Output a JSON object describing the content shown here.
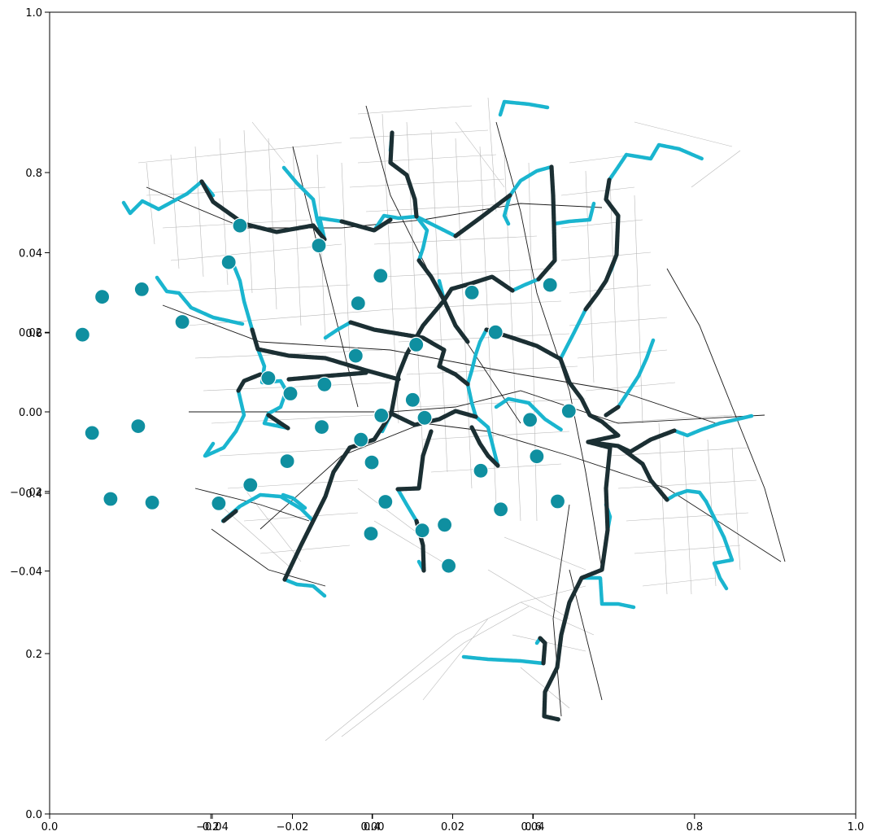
{
  "axes": {
    "outer_x_ticks": [
      "0.0",
      "0.2",
      "0.4",
      "0.6",
      "0.8",
      "1.0"
    ],
    "outer_y_ticks": [
      "0.0",
      "0.2",
      "0.4",
      "0.6",
      "0.8",
      "1.0"
    ],
    "inner_x_ticks": [
      "−0.04",
      "−0.02",
      "0.00",
      "0.02",
      "0.04"
    ],
    "inner_y_ticks": [
      "−0.04",
      "−0.02",
      "0.00",
      "0.02",
      "0.04"
    ]
  },
  "colors": {
    "trunk": "#1b2f33",
    "branch": "#1ab5cf",
    "node": "#0f8fa0",
    "road_major": "#111111",
    "road_minor": "#b3b3b3"
  },
  "map_data": {
    "coordinate_units": "degrees offset from center",
    "nodes": [
      [
        -0.0435,
        0.0264
      ],
      [
        -0.0342,
        0.0169
      ],
      [
        -0.0175,
        0.0289
      ],
      [
        -0.0224,
        0.0194
      ],
      [
        -0.0076,
        0.0308
      ],
      [
        0.0025,
        0.0226
      ],
      [
        0.0141,
        0.0376
      ],
      [
        0.0169,
        0.0468
      ],
      [
        0.0366,
        0.0418
      ],
      [
        0.0464,
        0.0273
      ],
      [
        0.052,
        0.0342
      ],
      [
        0.0748,
        0.03
      ],
      [
        0.0807,
        0.02
      ],
      [
        0.0943,
        0.0319
      ],
      [
        0.0609,
        0.0169
      ],
      [
        0.0458,
        0.0141
      ],
      [
        0.038,
        0.0069
      ],
      [
        0.024,
        0.0085
      ],
      [
        0.0295,
        0.0046
      ],
      [
        0.06,
        0.003
      ],
      [
        0.063,
        -0.0015
      ],
      [
        0.099,
        0.0002
      ],
      [
        0.0893,
        -0.002
      ],
      [
        0.091,
        -0.0112
      ],
      [
        0.0962,
        -0.0225
      ],
      [
        0.077,
        -0.0148
      ],
      [
        0.082,
        -0.0245
      ],
      [
        0.068,
        -0.0284
      ],
      [
        0.069,
        -0.0387
      ],
      [
        0.0624,
        -0.0298
      ],
      [
        0.0496,
        -0.0306
      ],
      [
        0.0522,
        -0.0009
      ],
      [
        0.0532,
        -0.0226
      ],
      [
        0.0498,
        -0.0127
      ],
      [
        0.0471,
        -0.007
      ],
      [
        0.0373,
        -0.0038
      ],
      [
        0.0287,
        -0.0124
      ],
      [
        0.0195,
        -0.0184
      ],
      [
        -0.02,
        -0.0053
      ],
      [
        -0.0085,
        -0.0036
      ],
      [
        -0.0154,
        -0.0219
      ],
      [
        -0.005,
        -0.0228
      ],
      [
        0.0116,
        -0.023
      ]
    ]
  }
}
